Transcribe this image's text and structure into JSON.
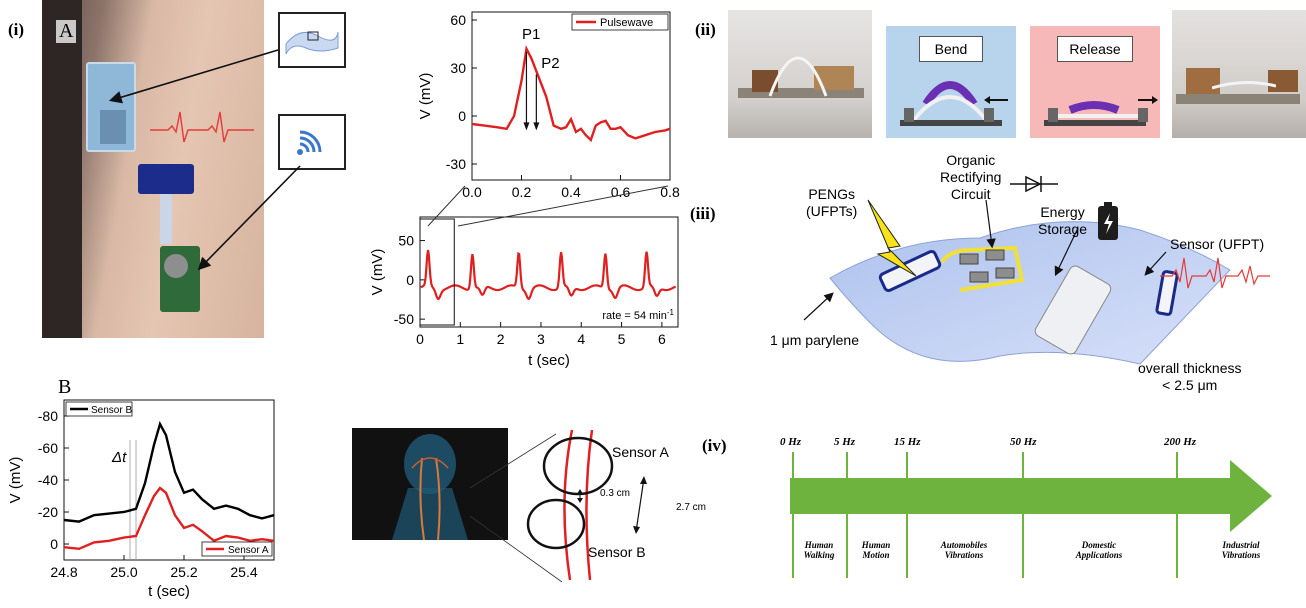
{
  "panel_i": {
    "label": "(i)",
    "sub_a": "A",
    "sub_b": "B"
  },
  "panel_ii": {
    "label": "(ii)",
    "bend": "Bend",
    "release": "Release"
  },
  "panel_iii": {
    "label": "(iii)",
    "pengs": "PENGs",
    "ufpts": "(UFPTs)",
    "organic_1": "Organic",
    "organic_2": "Rectifying",
    "organic_3": "Circuit",
    "energy_1": "Energy",
    "energy_2": "Storage",
    "sensor": "Sensor (UFPT)",
    "parylene": "1 μm parylene",
    "thickness_1": "overall thickness",
    "thickness_2": "< 2.5 μm"
  },
  "panel_iv": {
    "label": "(iv)",
    "ticks": [
      "0 Hz",
      "5 Hz",
      "15 Hz",
      "50 Hz",
      "200 Hz"
    ],
    "regions": [
      [
        "Human",
        "Walking"
      ],
      [
        "Human",
        "Motion"
      ],
      [
        "Automobiles",
        "Vibrations"
      ],
      [
        "Domestic",
        "Applications"
      ],
      [
        "Industrial",
        "Vibrations"
      ]
    ],
    "arrow_color": "#6fb33f"
  },
  "sensor_diagram": {
    "sensor_a": "Sensor A",
    "sensor_b": "Sensor B",
    "gap": "0.3 cm",
    "distance": "2.7 cm"
  },
  "chart_data": [
    {
      "type": "line",
      "legend": "Pulsewave",
      "ylabel": "V (mV)",
      "xlim": [
        0.0,
        0.8
      ],
      "ylim": [
        -40,
        65
      ],
      "xticks": [
        "0.0",
        "0.2",
        "0.4",
        "0.6",
        "0.8"
      ],
      "yticks": [
        "60",
        "30",
        "0",
        "-30"
      ],
      "annotations": [
        "P1",
        "P2"
      ],
      "series": [
        {
          "name": "Pulsewave",
          "color": "#e02020",
          "x": [
            0.0,
            0.05,
            0.1,
            0.14,
            0.17,
            0.2,
            0.22,
            0.24,
            0.27,
            0.3,
            0.33,
            0.36,
            0.38,
            0.4,
            0.42,
            0.44,
            0.46,
            0.48,
            0.5,
            0.52,
            0.54,
            0.56,
            0.58,
            0.6,
            0.63,
            0.66,
            0.7,
            0.74,
            0.78,
            0.8
          ],
          "y": [
            -5,
            -6,
            -7,
            -8,
            0,
            22,
            42,
            36,
            24,
            12,
            -6,
            -8,
            -7,
            -2,
            -10,
            -8,
            -12,
            -15,
            -6,
            -4,
            -3,
            -8,
            -8,
            -7,
            -12,
            -14,
            -12,
            -10,
            -9,
            -8
          ]
        }
      ]
    },
    {
      "type": "line",
      "xlabel": "t (sec)",
      "ylabel": "V (mV)",
      "xlim": [
        0,
        6.4
      ],
      "ylim": [
        -60,
        80
      ],
      "xticks": [
        "0",
        "1",
        "2",
        "3",
        "4",
        "5",
        "6"
      ],
      "yticks": [
        "50",
        "0",
        "-50"
      ],
      "annotation": "rate = 54 min",
      "annotation_sup": "-1",
      "series": [
        {
          "name": "pulse",
          "color": "#e02020",
          "peaks": [
            0.2,
            1.3,
            2.45,
            3.5,
            4.6,
            5.62
          ],
          "peak_value": 45,
          "baseline": -10
        }
      ]
    },
    {
      "type": "line",
      "xlabel": "t (sec)",
      "ylabel": "V (mV)",
      "xlim": [
        24.8,
        25.5
      ],
      "ylim": [
        10,
        -90
      ],
      "xticks": [
        "24.8",
        "25.0",
        "25.2",
        "25.4"
      ],
      "yticks": [
        "-80",
        "-60",
        "-40",
        "-20",
        "0"
      ],
      "annotation": "Δt",
      "series": [
        {
          "name": "Sensor B",
          "color": "#000000",
          "x": [
            24.8,
            24.85,
            24.9,
            24.95,
            25.0,
            25.04,
            25.07,
            25.1,
            25.12,
            25.14,
            25.17,
            25.2,
            25.23,
            25.26,
            25.3,
            25.34,
            25.38,
            25.42,
            25.46,
            25.5
          ],
          "y": [
            -15,
            -14,
            -18,
            -19,
            -20,
            -22,
            -38,
            -62,
            -75,
            -68,
            -45,
            -32,
            -34,
            -28,
            -22,
            -24,
            -22,
            -18,
            -16,
            -18
          ]
        },
        {
          "name": "Sensor A",
          "color": "#e02020",
          "x": [
            24.8,
            24.85,
            24.9,
            24.95,
            25.0,
            25.04,
            25.07,
            25.1,
            25.12,
            25.14,
            25.17,
            25.2,
            25.23,
            25.26,
            25.3,
            25.34,
            25.38,
            25.42,
            25.46,
            25.5
          ],
          "y": [
            2,
            3,
            -1,
            -2,
            -4,
            -5,
            -18,
            -30,
            -35,
            -32,
            -18,
            -10,
            -12,
            -8,
            -2,
            -5,
            -4,
            -2,
            -3,
            -2
          ]
        }
      ]
    }
  ]
}
